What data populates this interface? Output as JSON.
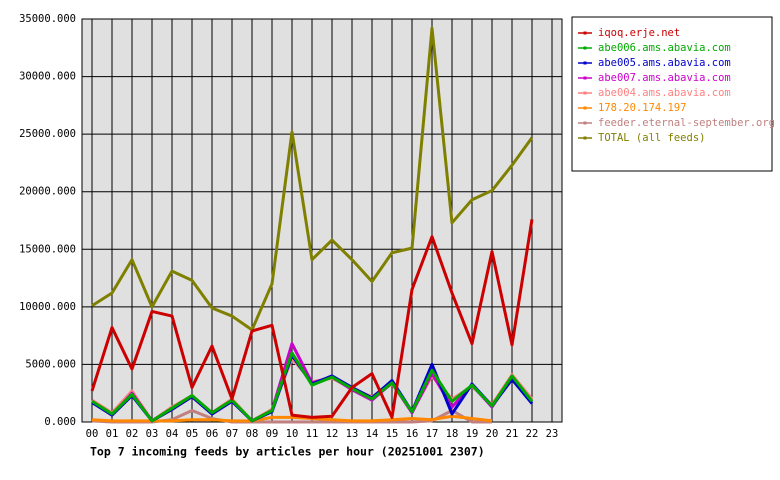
{
  "chart_data": {
    "type": "line",
    "title": "Top 7 incoming feeds by articles per hour (20251001 2307)",
    "categories": [
      "00",
      "01",
      "02",
      "03",
      "04",
      "05",
      "06",
      "07",
      "08",
      "09",
      "10",
      "11",
      "12",
      "13",
      "14",
      "15",
      "16",
      "17",
      "18",
      "19",
      "20",
      "21",
      "22",
      "23"
    ],
    "ylim": [
      0,
      35000
    ],
    "yticks": [
      {
        "value": 0,
        "label": "0.000"
      },
      {
        "value": 5000,
        "label": "5000.000"
      },
      {
        "value": 10000,
        "label": "10000.000"
      },
      {
        "value": 15000,
        "label": "15000.000"
      },
      {
        "value": 20000,
        "label": "20000.000"
      },
      {
        "value": 25000,
        "label": "25000.000"
      },
      {
        "value": 30000,
        "label": "30000.000"
      },
      {
        "value": 35000,
        "label": "35000.000"
      }
    ],
    "grid": true,
    "legend": "right",
    "series": [
      {
        "name": "iqoq.erje.net",
        "color": "#cc0000",
        "values": [
          2700,
          8200,
          4600,
          9600,
          9200,
          3000,
          6600,
          2000,
          7900,
          8400,
          600,
          400,
          500,
          3000,
          4200,
          400,
          11500,
          16100,
          11200,
          6800,
          14800,
          6700,
          17600,
          null
        ]
      },
      {
        "name": "abe006.ams.abavia.com",
        "color": "#00aa00",
        "values": [
          1800,
          700,
          2400,
          100,
          1200,
          2300,
          800,
          1900,
          100,
          1000,
          6000,
          3200,
          3900,
          2900,
          2000,
          3400,
          900,
          4500,
          1800,
          3200,
          1400,
          4000,
          1800,
          null
        ]
      },
      {
        "name": "abe005.ams.abavia.com",
        "color": "#0000cc",
        "values": [
          1700,
          600,
          2300,
          100,
          1100,
          2200,
          700,
          1800,
          100,
          900,
          5800,
          3300,
          4000,
          3000,
          2100,
          3600,
          900,
          5000,
          700,
          3300,
          1400,
          3700,
          1600,
          null
        ]
      },
      {
        "name": "abe007.ams.abavia.com",
        "color": "#cc00cc",
        "values": [
          1800,
          600,
          2500,
          100,
          1100,
          2200,
          700,
          1800,
          100,
          1000,
          6800,
          3400,
          3900,
          2800,
          1900,
          3400,
          800,
          4200,
          1300,
          3200,
          1300,
          3900,
          1800,
          null
        ]
      },
      {
        "name": "abe004.ams.abavia.com",
        "color": "#ff8080",
        "values": [
          1900,
          800,
          2700,
          100,
          1300,
          2300,
          800,
          2000,
          100,
          1100,
          5500,
          3500,
          3800,
          2900,
          2200,
          3300,
          900,
          4000,
          2000,
          3100,
          1500,
          4100,
          2000,
          null
        ]
      },
      {
        "name": "178.20.174.197",
        "color": "#ff8800",
        "values": [
          200,
          100,
          100,
          100,
          100,
          200,
          200,
          100,
          100,
          400,
          400,
          300,
          200,
          100,
          100,
          200,
          300,
          200,
          500,
          300,
          100,
          null,
          null,
          null
        ]
      },
      {
        "name": "feeder.eternal-september.org",
        "color": "#c08080",
        "values": [
          100,
          0,
          0,
          0,
          200,
          1000,
          300,
          0,
          0,
          0,
          0,
          0,
          0,
          0,
          0,
          0,
          0,
          100,
          1000,
          0,
          0,
          null,
          null,
          null
        ]
      },
      {
        "name": "TOTAL (all feeds)",
        "color": "#808000",
        "values": [
          10100,
          11200,
          14100,
          10000,
          13100,
          12300,
          9900,
          9200,
          8000,
          12000,
          25200,
          14100,
          15800,
          14100,
          12200,
          14700,
          15100,
          34200,
          17300,
          19300,
          20100,
          22300,
          24700,
          null
        ]
      }
    ]
  }
}
